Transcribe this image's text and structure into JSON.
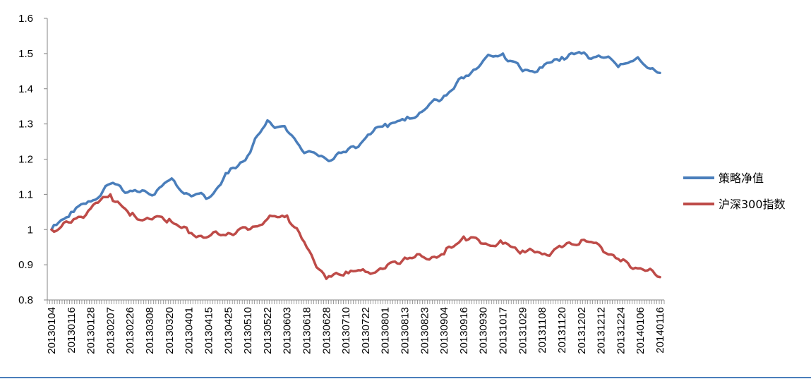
{
  "chart_data": {
    "type": "line",
    "ylim": [
      0.8,
      1.6
    ],
    "yticks": [
      0.8,
      0.9,
      1,
      1.1,
      1.2,
      1.3,
      1.4,
      1.5,
      1.6
    ],
    "ytick_labels": [
      "0.8",
      "0.9",
      "1",
      "1.1",
      "1.2",
      "1.3",
      "1.4",
      "1.5",
      "1.6"
    ],
    "x_tick_labels": [
      "20130104",
      "20130116",
      "20130128",
      "20130207",
      "20130226",
      "20130308",
      "20130320",
      "20130401",
      "20130415",
      "20130425",
      "20130510",
      "20130522",
      "20130603",
      "20130618",
      "20130628",
      "20130710",
      "20130722",
      "20130801",
      "20130813",
      "20130823",
      "20130904",
      "20130916",
      "20130930",
      "20131017",
      "20131029",
      "20131108",
      "20131120",
      "20131202",
      "20131212",
      "20131224",
      "20140106",
      "20140116"
    ],
    "legend_position": "right",
    "series": [
      {
        "name": "策略净值",
        "color": "#4a7ebb",
        "x": [
          "20130104",
          "20130116",
          "20130128",
          "20130207",
          "20130226",
          "20130308",
          "20130320",
          "20130401",
          "20130415",
          "20130425",
          "20130510",
          "20130522",
          "20130603",
          "20130618",
          "20130628",
          "20130710",
          "20130722",
          "20130801",
          "20130813",
          "20130823",
          "20130904",
          "20130916",
          "20130930",
          "20131017",
          "20131029",
          "20131108",
          "20131120",
          "20131202",
          "20131212",
          "20131224",
          "20140106",
          "20140116"
        ],
        "values": [
          1.0,
          1.05,
          1.08,
          1.13,
          1.11,
          1.1,
          1.14,
          1.1,
          1.09,
          1.16,
          1.21,
          1.31,
          1.28,
          1.22,
          1.2,
          1.22,
          1.26,
          1.3,
          1.31,
          1.34,
          1.38,
          1.43,
          1.48,
          1.5,
          1.45,
          1.46,
          1.49,
          1.5,
          1.49,
          1.47,
          1.48,
          1.445
        ]
      },
      {
        "name": "沪深300指数",
        "color": "#be4b48",
        "x": [
          "20130104",
          "20130116",
          "20130128",
          "20130207",
          "20130226",
          "20130308",
          "20130320",
          "20130401",
          "20130415",
          "20130425",
          "20130510",
          "20130522",
          "20130603",
          "20130618",
          "20130628",
          "20130710",
          "20130722",
          "20130801",
          "20130813",
          "20130823",
          "20130904",
          "20130916",
          "20130930",
          "20131017",
          "20131029",
          "20131108",
          "20131120",
          "20131202",
          "20131212",
          "20131224",
          "20140106",
          "20140116"
        ],
        "values": [
          1.0,
          1.02,
          1.06,
          1.1,
          1.04,
          1.03,
          1.03,
          0.99,
          0.98,
          0.99,
          1.0,
          1.03,
          1.04,
          0.95,
          0.86,
          0.88,
          0.88,
          0.89,
          0.92,
          0.92,
          0.93,
          0.98,
          0.96,
          0.96,
          0.94,
          0.93,
          0.95,
          0.97,
          0.95,
          0.91,
          0.89,
          0.865
        ]
      }
    ]
  }
}
